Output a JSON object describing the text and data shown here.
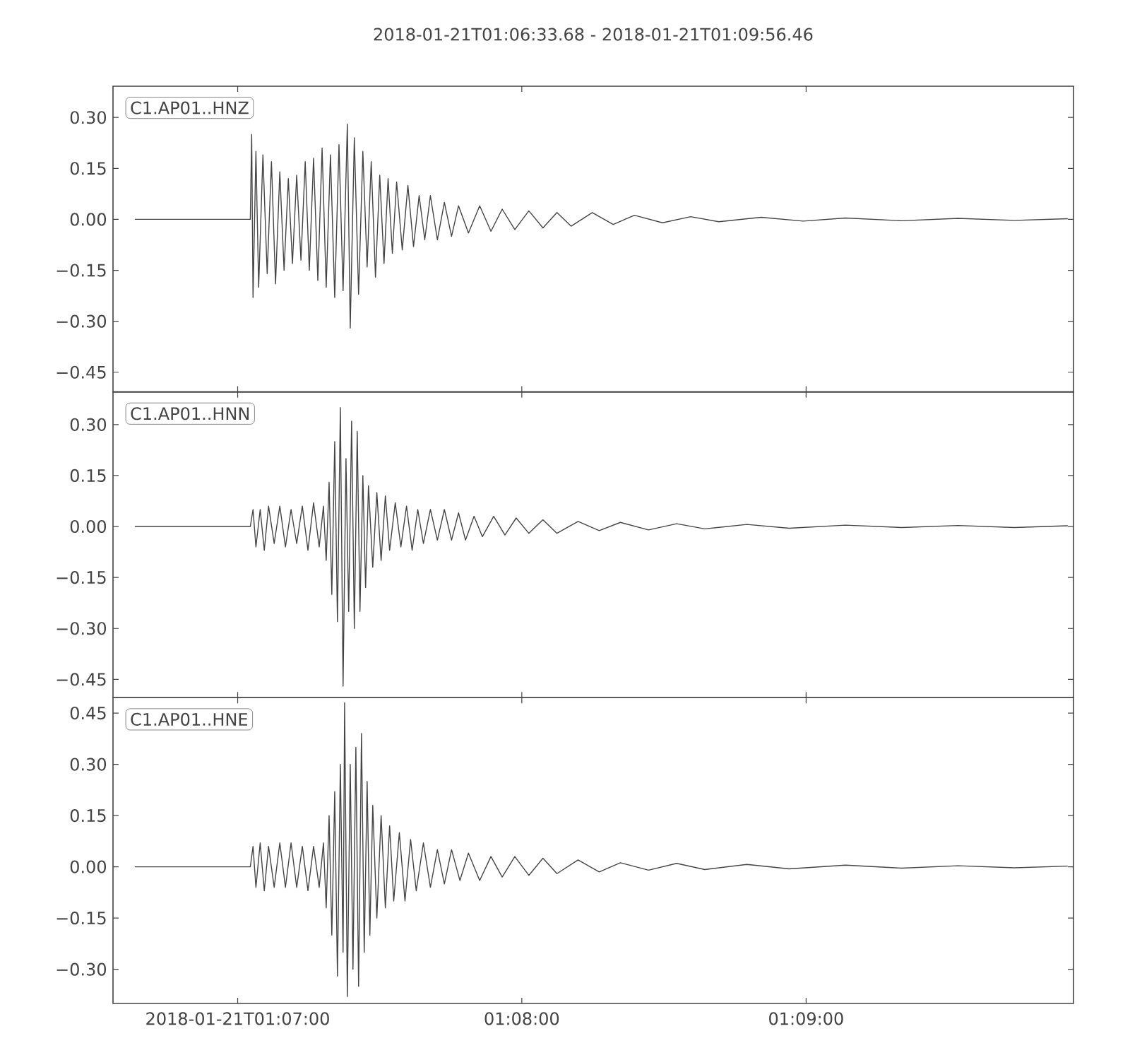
{
  "chart_data": [
    {
      "type": "line",
      "title": "2018-01-21T01:06:33.68  -  2018-01-21T01:09:56.46",
      "annotations": [
        "C1.AP01..HNZ"
      ],
      "color": "#454545",
      "xlim": [
        1.10936,
        1.16568
      ],
      "xticks": [
        {
          "value": 1.11667,
          "label": null
        },
        {
          "value": 1.13333,
          "label": null
        },
        {
          "value": 1.15,
          "label": null
        }
      ],
      "ylim": [
        -0.508,
        0.392
      ],
      "yticks": [
        {
          "value": -0.45,
          "label": "−0.45"
        },
        {
          "value": -0.3,
          "label": "−0.30"
        },
        {
          "value": -0.15,
          "label": "−0.15"
        },
        {
          "value": 0,
          "label": "0.00"
        },
        {
          "value": 0.15,
          "label": "0.15"
        },
        {
          "value": 0.3,
          "label": "0.30"
        }
      ],
      "tick_labels": "y",
      "x": [
        1.11064,
        1.11741,
        1.11749,
        1.11757,
        1.11774,
        1.1179,
        1.11815,
        1.1184,
        1.11865,
        1.11889,
        1.11914,
        1.11939,
        1.11964,
        1.11988,
        1.12013,
        1.12038,
        1.12063,
        1.12087,
        1.12112,
        1.12137,
        1.12162,
        1.12186,
        1.12211,
        1.12236,
        1.12261,
        1.12285,
        1.1231,
        1.12327,
        1.12351,
        1.12376,
        1.12401,
        1.12426,
        1.1245,
        1.12475,
        1.125,
        1.12525,
        1.12549,
        1.12574,
        1.12599,
        1.12632,
        1.12665,
        1.12698,
        1.12731,
        1.12764,
        1.12797,
        1.12838,
        1.12879,
        1.12921,
        1.12962,
        1.1302,
        1.13086,
        1.13152,
        1.13218,
        1.13292,
        1.13374,
        1.13457,
        1.13539,
        1.13622,
        1.13746,
        1.13869,
        1.13993,
        1.14158,
        1.14323,
        1.14488,
        1.14736,
        1.14983,
        1.15231,
        1.15561,
        1.15891,
        1.16221,
        1.16534
      ],
      "values": [
        0,
        0,
        0.25,
        -0.23,
        0.2,
        -0.2,
        0.19,
        -0.16,
        0.17,
        -0.19,
        0.14,
        -0.15,
        0.12,
        -0.13,
        0.13,
        -0.12,
        0.17,
        -0.15,
        0.18,
        -0.18,
        0.21,
        -0.2,
        0.19,
        -0.23,
        0.22,
        -0.21,
        0.28,
        -0.32,
        0.24,
        -0.22,
        0.2,
        -0.14,
        0.17,
        -0.17,
        0.13,
        -0.13,
        0.12,
        -0.1,
        0.11,
        -0.09,
        0.1,
        -0.08,
        0.07,
        -0.06,
        0.07,
        -0.06,
        0.05,
        -0.05,
        0.04,
        -0.04,
        0.04,
        -0.035,
        0.03,
        -0.03,
        0.025,
        -0.025,
        0.02,
        -0.02,
        0.02,
        -0.015,
        0.012,
        -0.01,
        0.008,
        -0.007,
        0.006,
        -0.005,
        0.004,
        -0.004,
        0.003,
        -0.003,
        0.002
      ]
    },
    {
      "type": "line",
      "annotations": [
        "C1.AP01..HNN"
      ],
      "color": "#454545",
      "xlim": [
        1.10936,
        1.16568
      ],
      "xticks": [
        {
          "value": 1.11667,
          "label": null
        },
        {
          "value": 1.13333,
          "label": null
        },
        {
          "value": 1.15,
          "label": null
        }
      ],
      "ylim": [
        -0.504,
        0.396
      ],
      "yticks": [
        {
          "value": -0.45,
          "label": "−0.45"
        },
        {
          "value": -0.3,
          "label": "−0.30"
        },
        {
          "value": -0.15,
          "label": "−0.15"
        },
        {
          "value": 0,
          "label": "0.00"
        },
        {
          "value": 0.15,
          "label": "0.15"
        },
        {
          "value": 0.3,
          "label": "0.30"
        }
      ],
      "tick_labels": "y",
      "x": [
        1.11064,
        1.11741,
        1.11757,
        1.11774,
        1.11799,
        1.11823,
        1.11848,
        1.11881,
        1.11914,
        1.11947,
        1.1198,
        1.12013,
        1.12046,
        1.12079,
        1.12112,
        1.12145,
        1.1217,
        1.12186,
        1.12203,
        1.12219,
        1.12236,
        1.12252,
        1.12269,
        1.12285,
        1.12302,
        1.12318,
        1.12335,
        1.12351,
        1.12368,
        1.12384,
        1.12401,
        1.12417,
        1.12434,
        1.12459,
        1.12483,
        1.12508,
        1.12533,
        1.12558,
        1.12591,
        1.12624,
        1.12657,
        1.1269,
        1.12723,
        1.12756,
        1.12797,
        1.12838,
        1.12879,
        1.12921,
        1.12962,
        1.13003,
        1.13053,
        1.13102,
        1.13168,
        1.13234,
        1.133,
        1.13374,
        1.13457,
        1.13539,
        1.13663,
        1.13787,
        1.13911,
        1.14076,
        1.14241,
        1.14406,
        1.14653,
        1.14901,
        1.15231,
        1.15561,
        1.15891,
        1.16221,
        1.16534
      ],
      "values": [
        0,
        0,
        0.05,
        -0.06,
        0.05,
        -0.07,
        0.06,
        -0.05,
        0.06,
        -0.06,
        0.05,
        -0.05,
        0.06,
        -0.07,
        0.07,
        -0.06,
        0.06,
        -0.1,
        0.13,
        -0.2,
        0.25,
        -0.28,
        0.35,
        -0.47,
        0.2,
        -0.25,
        0.31,
        -0.3,
        0.28,
        -0.25,
        0.15,
        -0.18,
        0.12,
        -0.12,
        0.1,
        -0.1,
        0.09,
        -0.07,
        0.07,
        -0.06,
        0.06,
        -0.07,
        0.05,
        -0.05,
        0.05,
        -0.04,
        0.05,
        -0.04,
        0.04,
        -0.04,
        0.03,
        -0.03,
        0.03,
        -0.025,
        0.025,
        -0.02,
        0.02,
        -0.02,
        0.015,
        -0.012,
        0.012,
        -0.01,
        0.008,
        -0.007,
        0.006,
        -0.005,
        0.004,
        -0.003,
        0.003,
        -0.003,
        0.002
      ]
    },
    {
      "type": "line",
      "annotations": [
        "C1.AP01..HNE"
      ],
      "color": "#454545",
      "xlim": [
        1.10936,
        1.16568
      ],
      "xticks": [
        {
          "value": 1.11667,
          "label": "2018-01-21T01:07:00"
        },
        {
          "value": 1.13333,
          "label": "01:08:00"
        },
        {
          "value": 1.15,
          "label": "01:09:00"
        }
      ],
      "ylim": [
        -0.4,
        0.495
      ],
      "yticks": [
        {
          "value": -0.3,
          "label": "−0.30"
        },
        {
          "value": -0.15,
          "label": "−0.15"
        },
        {
          "value": 0,
          "label": "0.00"
        },
        {
          "value": 0.15,
          "label": "0.15"
        },
        {
          "value": 0.3,
          "label": "0.30"
        },
        {
          "value": 0.45,
          "label": "0.45"
        }
      ],
      "x": [
        1.11064,
        1.11741,
        1.11757,
        1.11774,
        1.11799,
        1.11823,
        1.11848,
        1.11881,
        1.11914,
        1.11947,
        1.1198,
        1.12013,
        1.12046,
        1.12079,
        1.12112,
        1.12145,
        1.1217,
        1.12186,
        1.12203,
        1.12219,
        1.12236,
        1.12252,
        1.12269,
        1.12285,
        1.12294,
        1.1231,
        1.12327,
        1.12343,
        1.1236,
        1.12376,
        1.12393,
        1.12409,
        1.12426,
        1.12442,
        1.12459,
        1.12483,
        1.12508,
        1.12533,
        1.12558,
        1.12582,
        1.12615,
        1.12648,
        1.12681,
        1.12714,
        1.12756,
        1.12797,
        1.12838,
        1.12879,
        1.12921,
        1.1297,
        1.1302,
        1.13086,
        1.13152,
        1.13218,
        1.13292,
        1.13374,
        1.13457,
        1.13539,
        1.13663,
        1.13787,
        1.13911,
        1.14076,
        1.14241,
        1.14406,
        1.14653,
        1.14901,
        1.15231,
        1.15561,
        1.15891,
        1.16221,
        1.16534
      ],
      "values": [
        0,
        0,
        0.06,
        -0.06,
        0.07,
        -0.07,
        0.06,
        -0.06,
        0.07,
        -0.06,
        0.07,
        -0.06,
        0.06,
        -0.07,
        0.06,
        -0.06,
        0.07,
        -0.12,
        0.15,
        -0.2,
        0.22,
        -0.32,
        0.3,
        -0.25,
        0.48,
        -0.38,
        0.3,
        -0.3,
        0.35,
        -0.35,
        0.39,
        -0.25,
        0.25,
        -0.2,
        0.18,
        -0.15,
        0.15,
        -0.12,
        0.12,
        -0.1,
        0.1,
        -0.1,
        0.08,
        -0.07,
        0.07,
        -0.06,
        0.05,
        -0.05,
        0.05,
        -0.04,
        0.04,
        -0.04,
        0.03,
        -0.03,
        0.03,
        -0.025,
        0.025,
        -0.02,
        0.02,
        -0.015,
        0.012,
        -0.01,
        0.01,
        -0.008,
        0.007,
        -0.006,
        0.005,
        -0.004,
        0.003,
        -0.003,
        0.002
      ]
    }
  ]
}
